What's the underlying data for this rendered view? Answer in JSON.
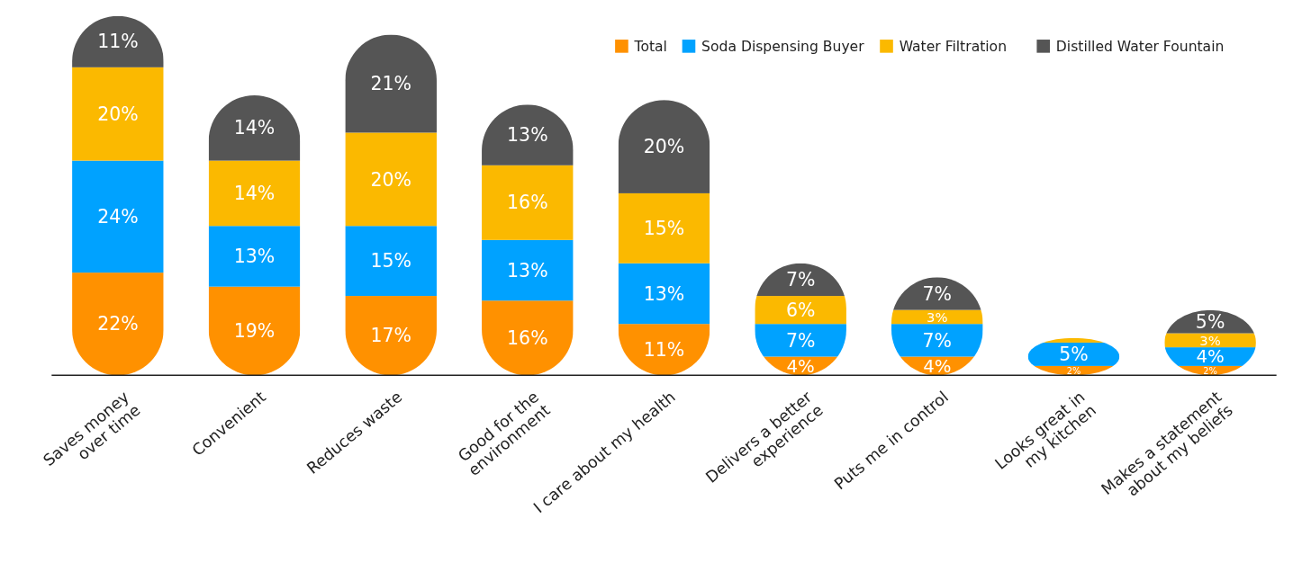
{
  "chart_data": {
    "type": "bar",
    "stacked": true,
    "legend": "top right",
    "data_labels": true,
    "categories": [
      "Saves money\nover time",
      "Convenient",
      "Reduces waste",
      "Good for the\nenvironment",
      "I care about my health",
      "Delivers a better\nexperience",
      "Puts me in control",
      "Looks great in\nmy kitchen",
      "Makes a statement\nabout my beliefs"
    ],
    "series": [
      {
        "name": "Total",
        "color": "#ff9100",
        "values": [
          22,
          19,
          17,
          16,
          11,
          4,
          4,
          2,
          2
        ],
        "value_labels": [
          "22%",
          "19%",
          "17%",
          "16%",
          "11%",
          "4%",
          "4%",
          "2%",
          "2%"
        ]
      },
      {
        "name": "Soda Dispensing Buyer",
        "color": "#00a2ff",
        "values": [
          24,
          13,
          15,
          13,
          13,
          7,
          7,
          5,
          4
        ],
        "value_labels": [
          "24%",
          "13%",
          "15%",
          "13%",
          "13%",
          "7%",
          "7%",
          "5%",
          "4%"
        ]
      },
      {
        "name": "Water Filtration",
        "color": "#fbb900",
        "values": [
          20,
          14,
          20,
          16,
          15,
          6,
          3,
          1,
          3
        ],
        "value_labels": [
          "20%",
          "14%",
          "20%",
          "16%",
          "15%",
          "6%",
          "3%",
          null,
          "3%"
        ]
      },
      {
        "name": "Distilled Water Fountain",
        "color": "#555555",
        "values": [
          11,
          14,
          21,
          13,
          20,
          7,
          7,
          null,
          5
        ],
        "value_labels": [
          "11%",
          "14%",
          "21%",
          "13%",
          "20%",
          "7%",
          "7%",
          null,
          "5%"
        ]
      }
    ]
  }
}
